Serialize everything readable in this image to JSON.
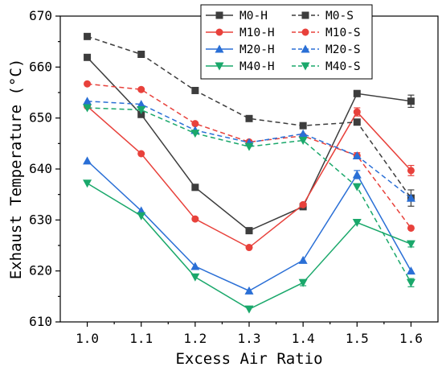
{
  "chart_data": {
    "type": "line",
    "xlabel": "Excess Air Ratio",
    "ylabel": "Exhaust Temperature (°C)",
    "xlim": [
      0.95,
      1.65
    ],
    "ylim": [
      610,
      670
    ],
    "x": [
      1.0,
      1.1,
      1.2,
      1.3,
      1.4,
      1.5,
      1.6
    ],
    "x_tick_labels": [
      "1.0",
      "1.1",
      "1.2",
      "1.3",
      "1.4",
      "1.5",
      "1.6"
    ],
    "y_ticks": [
      610,
      620,
      630,
      640,
      650,
      660,
      670
    ],
    "y_tick_labels": [
      "610",
      "620",
      "630",
      "640",
      "650",
      "660",
      "670"
    ],
    "grid": false,
    "legend_position": "top-center",
    "series": [
      {
        "name": "M0-H",
        "color": "#3d3d3d",
        "marker": "square",
        "dash": "solid",
        "values": [
          661.9,
          650.7,
          636.4,
          627.9,
          632.6,
          654.8,
          653.3
        ],
        "errors": [
          0,
          0,
          0,
          0,
          0,
          0.6,
          1.2
        ]
      },
      {
        "name": "M10-H",
        "color": "#e8413b",
        "marker": "circle",
        "dash": "solid",
        "values": [
          652.3,
          643.0,
          630.2,
          624.6,
          633.0,
          651.2,
          639.7
        ],
        "errors": [
          0,
          0,
          0,
          0,
          0,
          0.8,
          1.0
        ]
      },
      {
        "name": "M20-H",
        "color": "#2a6fd6",
        "marker": "triangle-up",
        "dash": "solid",
        "values": [
          641.6,
          631.8,
          620.9,
          616.1,
          622.1,
          638.9,
          620.0
        ],
        "errors": [
          0,
          0,
          0,
          0,
          0,
          0.8,
          0
        ]
      },
      {
        "name": "M40-H",
        "color": "#1aa86b",
        "marker": "triangle-down",
        "dash": "solid",
        "values": [
          637.2,
          630.8,
          618.8,
          612.5,
          617.7,
          629.5,
          625.3
        ],
        "errors": [
          0,
          0,
          0,
          0,
          0.6,
          0,
          0.6
        ]
      },
      {
        "name": "M0-S",
        "color": "#3d3d3d",
        "marker": "square",
        "dash": "dashed",
        "values": [
          666.0,
          662.5,
          655.4,
          649.9,
          648.5,
          649.2,
          634.3
        ],
        "errors": [
          0,
          0,
          0,
          0,
          0,
          0,
          1.6
        ]
      },
      {
        "name": "M10-S",
        "color": "#e8413b",
        "marker": "circle",
        "dash": "dashed",
        "values": [
          656.7,
          655.6,
          648.9,
          645.3,
          646.5,
          642.6,
          628.4
        ],
        "errors": [
          0,
          0,
          0,
          0,
          0,
          0.6,
          0
        ]
      },
      {
        "name": "M20-S",
        "color": "#2a6fd6",
        "marker": "triangle-up",
        "dash": "dashed",
        "values": [
          653.3,
          652.7,
          647.6,
          645.2,
          646.9,
          642.6,
          634.3
        ],
        "errors": [
          0,
          0,
          0,
          0,
          0,
          0,
          0
        ]
      },
      {
        "name": "M40-S",
        "color": "#1aa86b",
        "marker": "triangle-down",
        "dash": "dashed",
        "values": [
          652.0,
          651.6,
          647.0,
          644.4,
          645.6,
          636.5,
          617.7
        ],
        "errors": [
          0,
          0,
          0,
          0,
          0,
          0,
          0.8
        ]
      }
    ]
  }
}
